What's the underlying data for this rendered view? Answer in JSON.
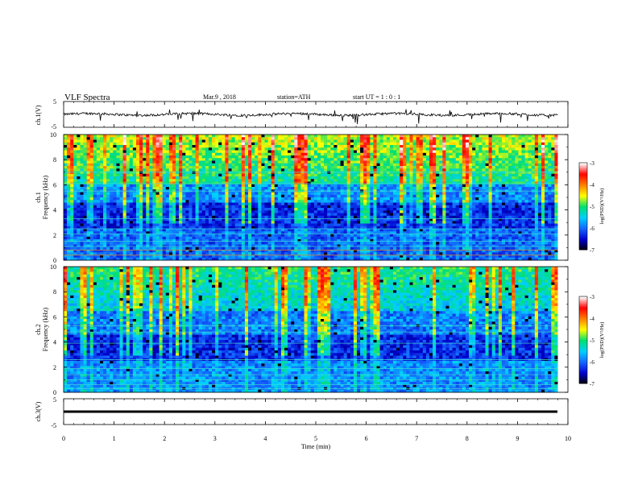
{
  "header": {
    "title": "VLF Spectra",
    "date": "Mar.9 , 2018",
    "station": "station=ATH",
    "start": "start UT = 1 : 0 : 1"
  },
  "colors": {
    "colormap": [
      "#000000",
      "#0000cc",
      "#1565ff",
      "#00d0ff",
      "#00e070",
      "#ffff00",
      "#ff8000",
      "#ff0000",
      "#ffffff"
    ]
  },
  "chart_data": [
    {
      "type": "line",
      "ylabel": "ch.1(V)",
      "ylim": [
        -5,
        5
      ],
      "yticks": [
        "5",
        "-5"
      ],
      "xlim": [
        0,
        10
      ],
      "baseline_value": 0,
      "description_values": "noisy trace around 0 V with sparse spikes"
    },
    {
      "type": "heatmap",
      "ylabel": "ch.1\nFrequency (kHz)",
      "ylim": [
        0,
        10
      ],
      "yticks": [
        "0",
        "2",
        "4",
        "6",
        "8",
        "10"
      ],
      "xlim": [
        0,
        10
      ],
      "colorbar": {
        "label": "log(PSD)(V²/Hz)",
        "range": [
          -7,
          -3
        ],
        "ticks": [
          "-3",
          "-4",
          "-5",
          "-6",
          "-7"
        ]
      }
    },
    {
      "type": "heatmap",
      "ylabel": "ch.2\nFrequency (kHz)",
      "ylim": [
        0,
        10
      ],
      "yticks": [
        "0",
        "2",
        "4",
        "6",
        "8",
        "10"
      ],
      "xlim": [
        0,
        10
      ],
      "colorbar": {
        "label": "log(PSD)(V²/Hz)",
        "range": [
          -7,
          -3
        ],
        "ticks": [
          "-3",
          "-4",
          "-5",
          "-6",
          "-7"
        ]
      }
    },
    {
      "type": "line",
      "ylabel": "ch.3(V)",
      "ylim": [
        -5,
        5
      ],
      "yticks": [
        "5",
        "-5"
      ],
      "xlim": [
        0,
        10
      ],
      "baseline_value": 0.3,
      "xlabel": "Time (min)",
      "xticks": [
        "0",
        "1",
        "2",
        "3",
        "4",
        "5",
        "6",
        "7",
        "8",
        "9",
        "10"
      ],
      "data_end": 9.8
    }
  ]
}
